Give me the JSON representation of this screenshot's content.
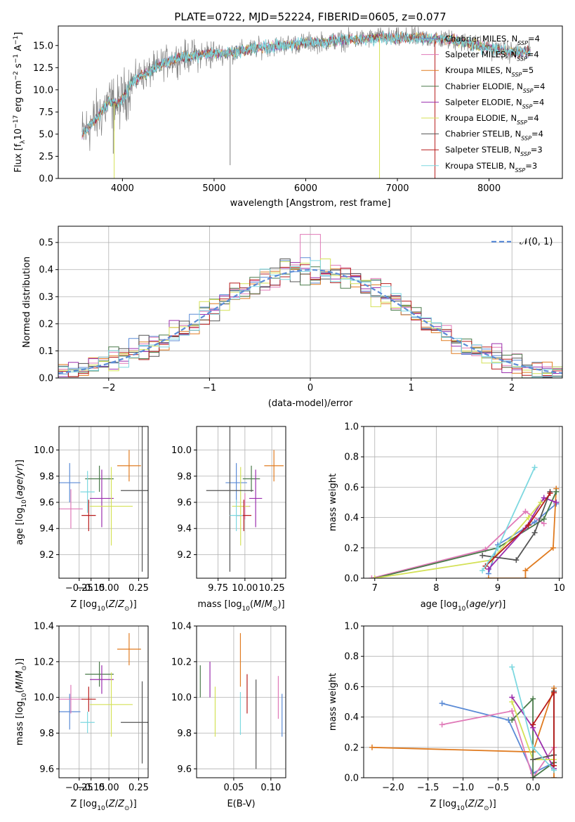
{
  "title": "PLATE=0722, MJD=52224, FIBERID=0605, z=0.077",
  "colors": {
    "chabrier_miles": "#5b8bd6",
    "salpeter_miles": "#e07ab8",
    "kroupa_miles": "#e07b20",
    "chabrier_elodie": "#4a7a4a",
    "salpeter_elodie": "#9b2fae",
    "kroupa_elodie": "#d4e157",
    "chabrier_stelib": "#555555",
    "salpeter_stelib": "#b71c1c",
    "kroupa_stelib": "#7dd8e0",
    "data": "#808080",
    "grid": "#b0b0b0"
  },
  "chart_data": [
    {
      "id": "spectrum",
      "type": "line",
      "title": "PLATE=0722, MJD=52224, FIBERID=0605, z=0.077",
      "xlabel": "wavelength [Angstrom, rest frame]",
      "ylabel": "Flux [f_λ 10^-17 erg cm^-2 s^-1 A^-1]",
      "xlim": [
        3300,
        8800
      ],
      "ylim": [
        0,
        17.2
      ],
      "xticks": [
        4000,
        5000,
        6000,
        7000,
        8000
      ],
      "yticks": [
        0.0,
        2.5,
        5.0,
        7.5,
        10.0,
        12.5,
        15.0
      ],
      "grid": false,
      "legend_position": "right",
      "legend": [
        {
          "label": "Chabrier MILES, N",
          "sub": "SSP",
          "suffix": "=4",
          "color_key": "chabrier_miles"
        },
        {
          "label": "Salpeter MILES, N",
          "sub": "SSP",
          "suffix": "=4",
          "color_key": "salpeter_miles"
        },
        {
          "label": "Kroupa MILES, N",
          "sub": "SSP",
          "suffix": "=5",
          "color_key": "kroupa_miles"
        },
        {
          "label": "Chabrier ELODIE, N",
          "sub": "SSP",
          "suffix": "=4",
          "color_key": "chabrier_elodie"
        },
        {
          "label": "Salpeter ELODIE, N",
          "sub": "SSP",
          "suffix": "=4",
          "color_key": "salpeter_elodie"
        },
        {
          "label": "Kroupa ELODIE, N",
          "sub": "SSP",
          "suffix": "=4",
          "color_key": "kroupa_elodie"
        },
        {
          "label": "Chabrier STELIB, N",
          "sub": "SSP",
          "suffix": "=4",
          "color_key": "chabrier_stelib"
        },
        {
          "label": "Salpeter STELIB, N",
          "sub": "SSP",
          "suffix": "=3",
          "color_key": "salpeter_stelib"
        },
        {
          "label": "Kroupa STELIB, N",
          "sub": "SSP",
          "suffix": "=3",
          "color_key": "kroupa_stelib"
        }
      ],
      "continuum": [
        [
          3550,
          4.8
        ],
        [
          3650,
          6.0
        ],
        [
          3750,
          7.2
        ],
        [
          3850,
          8.6
        ],
        [
          3950,
          8.4
        ],
        [
          4000,
          9.0
        ],
        [
          4100,
          10.8
        ],
        [
          4200,
          11.6
        ],
        [
          4300,
          12.0
        ],
        [
          4400,
          12.8
        ],
        [
          4600,
          13.6
        ],
        [
          4800,
          13.9
        ],
        [
          5000,
          14.1
        ],
        [
          5200,
          14.2
        ],
        [
          5400,
          14.6
        ],
        [
          5600,
          14.9
        ],
        [
          5800,
          15.1
        ],
        [
          6000,
          15.3
        ],
        [
          6200,
          15.4
        ],
        [
          6400,
          15.6
        ],
        [
          6600,
          15.7
        ],
        [
          6800,
          15.9
        ],
        [
          7000,
          15.8
        ],
        [
          7200,
          15.9
        ],
        [
          7400,
          15.8
        ],
        [
          7600,
          15.6
        ],
        [
          7800,
          15.2
        ],
        [
          8000,
          14.7
        ],
        [
          8200,
          14.3
        ],
        [
          8400,
          14.2
        ]
      ],
      "dips": [
        {
          "x": 3910,
          "y": 0.0,
          "color_key": "kroupa_elodie"
        },
        {
          "x": 3900,
          "y": 2.8,
          "color_key": "data"
        },
        {
          "x": 5175,
          "y": 1.5,
          "color_key": "data"
        },
        {
          "x": 6805,
          "y": 0.0,
          "color_key": "kroupa_elodie"
        },
        {
          "x": 7410,
          "y": 0.0,
          "color_key": "salpeter_stelib"
        }
      ]
    },
    {
      "id": "residuals",
      "type": "histogram",
      "xlabel": "(data-model)/error",
      "ylabel": "Normed distribution",
      "xlim": [
        -2.5,
        2.5
      ],
      "ylim": [
        0,
        0.56
      ],
      "xticks": [
        -2,
        -1,
        0,
        1,
        2
      ],
      "yticks": [
        0.0,
        0.1,
        0.2,
        0.3,
        0.4,
        0.5
      ],
      "grid": true,
      "bin_width": 0.1,
      "reference_curve": {
        "label": "𝒩(0, 1)",
        "mean": 0,
        "sigma": 1,
        "color_key": "chabrier_miles"
      }
    },
    {
      "id": "age-vs-Z",
      "type": "errorbar",
      "xlabel": "Z [log10(Z/Z⊙)]",
      "ylabel": "age [log10(age/yr)]",
      "xlim": [
        -0.42,
        0.33
      ],
      "ylim": [
        9.02,
        10.18
      ],
      "xticks": [
        -0.25,
        -0.15,
        0.0,
        0.25
      ],
      "xtick_labels": [
        "−0.25",
        "−0.15",
        "0.00",
        "0.25"
      ],
      "yticks": [
        9.2,
        9.4,
        9.6,
        9.8,
        10.0
      ],
      "grid": true,
      "points": [
        {
          "x": -0.33,
          "xerr": 0.09,
          "y": 9.75,
          "yerr": 0.15,
          "color_key": "chabrier_miles"
        },
        {
          "x": -0.32,
          "xerr": 0.1,
          "y": 9.55,
          "yerr": 0.15,
          "color_key": "salpeter_miles"
        },
        {
          "x": 0.17,
          "xerr": 0.1,
          "y": 9.88,
          "yerr": 0.12,
          "color_key": "kroupa_miles"
        },
        {
          "x": -0.08,
          "xerr": 0.12,
          "y": 9.78,
          "yerr": 0.1,
          "color_key": "chabrier_elodie"
        },
        {
          "x": -0.06,
          "xerr": 0.1,
          "y": 9.63,
          "yerr": 0.22,
          "color_key": "salpeter_elodie"
        },
        {
          "x": 0.02,
          "xerr": 0.18,
          "y": 9.57,
          "yerr": 0.3,
          "color_key": "kroupa_elodie"
        },
        {
          "x": 0.28,
          "xerr": 0.18,
          "y": 9.69,
          "yerr": 0.62,
          "color_key": "chabrier_stelib"
        },
        {
          "x": -0.17,
          "xerr": 0.06,
          "y": 9.5,
          "yerr": 0.12,
          "color_key": "salpeter_stelib"
        },
        {
          "x": -0.18,
          "xerr": 0.06,
          "y": 9.68,
          "yerr": 0.16,
          "color_key": "kroupa_stelib"
        }
      ]
    },
    {
      "id": "age-vs-mass",
      "type": "errorbar",
      "xlabel": "mass [log10(M/M⊙)]",
      "xlim": [
        9.55,
        10.38
      ],
      "ylim": [
        9.02,
        10.18
      ],
      "xticks": [
        9.75,
        10.0,
        10.25
      ],
      "xtick_labels": [
        "9.75",
        "10.00",
        "10.25"
      ],
      "yticks": [
        9.2,
        9.4,
        9.6,
        9.8,
        10.0
      ],
      "grid": true,
      "points": [
        {
          "x": 9.92,
          "xerr": 0.1,
          "y": 9.75,
          "yerr": 0.15,
          "color_key": "chabrier_miles"
        },
        {
          "x": 10.0,
          "xerr": 0.05,
          "y": 9.57,
          "yerr": 0.1,
          "color_key": "salpeter_miles"
        },
        {
          "x": 10.27,
          "xerr": 0.09,
          "y": 9.88,
          "yerr": 0.12,
          "color_key": "kroupa_miles"
        },
        {
          "x": 10.06,
          "xerr": 0.08,
          "y": 9.78,
          "yerr": 0.1,
          "color_key": "chabrier_elodie"
        },
        {
          "x": 10.1,
          "xerr": 0.06,
          "y": 9.63,
          "yerr": 0.22,
          "color_key": "salpeter_elodie"
        },
        {
          "x": 9.96,
          "xerr": 0.08,
          "y": 9.57,
          "yerr": 0.3,
          "color_key": "kroupa_elodie"
        },
        {
          "x": 9.86,
          "xerr": 0.22,
          "y": 9.69,
          "yerr": 0.62,
          "color_key": "chabrier_stelib"
        },
        {
          "x": 9.99,
          "xerr": 0.07,
          "y": 9.5,
          "yerr": 0.12,
          "color_key": "salpeter_stelib"
        },
        {
          "x": 9.92,
          "xerr": 0.06,
          "y": 9.5,
          "yerr": 0.12,
          "color_key": "kroupa_stelib"
        }
      ]
    },
    {
      "id": "weight-vs-age",
      "type": "line",
      "xlabel": "age [log10(age/yr)]",
      "ylabel": "mass weight",
      "xlim": [
        6.82,
        10.05
      ],
      "ylim": [
        0,
        1.0
      ],
      "xticks": [
        7,
        8,
        9,
        10
      ],
      "yticks": [
        0.0,
        0.2,
        0.4,
        0.6,
        0.8,
        1.0
      ],
      "grid": true,
      "series": [
        {
          "color_key": "chabrier_miles",
          "points": [
            [
              8.85,
              0.03
            ],
            [
              9.0,
              0.22
            ],
            [
              9.6,
              0.37
            ],
            [
              9.95,
              0.49
            ]
          ]
        },
        {
          "color_key": "salpeter_miles",
          "points": [
            [
              6.95,
              0.0
            ],
            [
              8.8,
              0.19
            ],
            [
              9.45,
              0.44
            ],
            [
              9.75,
              0.36
            ]
          ]
        },
        {
          "color_key": "kroupa_miles",
          "points": [
            [
              8.85,
              0.0
            ],
            [
              9.45,
              0.0
            ],
            [
              9.45,
              0.05
            ],
            [
              9.9,
              0.2
            ],
            [
              9.95,
              0.59
            ]
          ]
        },
        {
          "color_key": "chabrier_elodie",
          "points": [
            [
              7.0,
              0.0
            ],
            [
              9.0,
              0.2
            ],
            [
              9.75,
              0.39
            ],
            [
              9.95,
              0.57
            ]
          ]
        },
        {
          "color_key": "salpeter_elodie",
          "points": [
            [
              8.85,
              0.06
            ],
            [
              9.45,
              0.33
            ],
            [
              9.75,
              0.53
            ],
            [
              9.95,
              0.5
            ]
          ]
        },
        {
          "color_key": "kroupa_elodie",
          "points": [
            [
              7.0,
              0.0
            ],
            [
              8.9,
              0.12
            ],
            [
              9.5,
              0.4
            ],
            [
              9.7,
              0.5
            ]
          ]
        },
        {
          "color_key": "chabrier_stelib",
          "points": [
            [
              8.75,
              0.15
            ],
            [
              9.3,
              0.12
            ],
            [
              9.6,
              0.3
            ],
            [
              9.85,
              0.57
            ]
          ]
        },
        {
          "color_key": "salpeter_stelib",
          "points": [
            [
              8.8,
              0.08
            ],
            [
              9.5,
              0.35
            ],
            [
              9.85,
              0.56
            ]
          ]
        },
        {
          "color_key": "kroupa_stelib",
          "points": [
            [
              8.75,
              0.05
            ],
            [
              9.0,
              0.2
            ],
            [
              9.6,
              0.73
            ]
          ]
        }
      ]
    },
    {
      "id": "mass-vs-Z",
      "type": "errorbar",
      "xlabel": "Z [log10(Z/Z⊙)]",
      "ylabel": "mass [log10(M/M⊙)]",
      "xlim": [
        -0.42,
        0.33
      ],
      "ylim": [
        9.55,
        10.4
      ],
      "xticks": [
        -0.25,
        -0.15,
        0.0,
        0.25
      ],
      "xtick_labels": [
        "−0.25",
        "−0.15",
        "0.00",
        "0.25"
      ],
      "yticks": [
        9.6,
        9.8,
        10.0,
        10.2,
        10.4
      ],
      "grid": true,
      "points": [
        {
          "x": -0.33,
          "xerr": 0.09,
          "y": 9.92,
          "yerr": 0.1,
          "color_key": "chabrier_miles"
        },
        {
          "x": -0.32,
          "xerr": 0.1,
          "y": 9.99,
          "yerr": 0.08,
          "color_key": "salpeter_miles"
        },
        {
          "x": 0.17,
          "xerr": 0.1,
          "y": 10.27,
          "yerr": 0.09,
          "color_key": "kroupa_miles"
        },
        {
          "x": -0.08,
          "xerr": 0.12,
          "y": 10.13,
          "yerr": 0.07,
          "color_key": "chabrier_elodie"
        },
        {
          "x": -0.06,
          "xerr": 0.1,
          "y": 10.1,
          "yerr": 0.08,
          "color_key": "salpeter_elodie"
        },
        {
          "x": 0.02,
          "xerr": 0.18,
          "y": 9.96,
          "yerr": 0.18,
          "color_key": "kroupa_elodie"
        },
        {
          "x": 0.28,
          "xerr": 0.18,
          "y": 9.86,
          "yerr": 0.23,
          "color_key": "chabrier_stelib"
        },
        {
          "x": -0.17,
          "xerr": 0.06,
          "y": 9.99,
          "yerr": 0.07,
          "color_key": "salpeter_stelib"
        },
        {
          "x": -0.18,
          "xerr": 0.06,
          "y": 9.86,
          "yerr": 0.06,
          "color_key": "kroupa_stelib"
        }
      ]
    },
    {
      "id": "mass-vs-ebv",
      "type": "errorbar",
      "xlabel": "E(B-V)",
      "xlim": [
        0.0,
        0.12
      ],
      "ylim": [
        9.55,
        10.4
      ],
      "xticks": [
        0.05,
        0.1
      ],
      "xtick_labels": [
        "0.05",
        "0.10"
      ],
      "yticks": [
        9.6,
        9.8,
        10.0,
        10.2,
        10.4
      ],
      "grid": true,
      "points": [
        {
          "x": 0.115,
          "y": 9.9,
          "yerr": 0.12,
          "color_key": "chabrier_miles"
        },
        {
          "x": 0.11,
          "y": 10.0,
          "yerr": 0.12,
          "color_key": "salpeter_miles"
        },
        {
          "x": 0.059,
          "y": 10.21,
          "yerr": 0.15,
          "color_key": "kroupa_miles"
        },
        {
          "x": 0.005,
          "y": 10.09,
          "yerr": 0.09,
          "color_key": "chabrier_elodie"
        },
        {
          "x": 0.018,
          "y": 10.1,
          "yerr": 0.1,
          "color_key": "salpeter_elodie"
        },
        {
          "x": 0.025,
          "y": 9.92,
          "yerr": 0.14,
          "color_key": "kroupa_elodie"
        },
        {
          "x": 0.08,
          "y": 9.85,
          "yerr": 0.25,
          "color_key": "chabrier_stelib"
        },
        {
          "x": 0.068,
          "y": 10.02,
          "yerr": 0.11,
          "color_key": "salpeter_stelib"
        },
        {
          "x": 0.059,
          "y": 9.91,
          "yerr": 0.12,
          "color_key": "kroupa_stelib"
        }
      ]
    },
    {
      "id": "weight-vs-Z",
      "type": "line",
      "xlabel": "Z [log10(Z/Z⊙)]",
      "ylabel": "mass weight",
      "xlim": [
        -2.42,
        0.42
      ],
      "ylim": [
        0,
        1.0
      ],
      "xticks": [
        -2.0,
        -1.5,
        -1.0,
        -0.5,
        0.0
      ],
      "xtick_labels": [
        "−2.0",
        "−1.5",
        "−1.0",
        "−0.5",
        "0.0"
      ],
      "yticks": [
        0.0,
        0.2,
        0.4,
        0.6,
        0.8,
        1.0
      ],
      "grid": true,
      "series": [
        {
          "color_key": "chabrier_miles",
          "points": [
            [
              -1.3,
              0.49
            ],
            [
              -0.35,
              0.38
            ],
            [
              0.0,
              0.03
            ],
            [
              0.3,
              0.1
            ]
          ]
        },
        {
          "color_key": "salpeter_miles",
          "points": [
            [
              -1.3,
              0.35
            ],
            [
              -0.3,
              0.44
            ],
            [
              0.0,
              0.0
            ],
            [
              0.3,
              0.2
            ]
          ]
        },
        {
          "color_key": "kroupa_miles",
          "points": [
            [
              -2.3,
              0.2
            ],
            [
              0.0,
              0.17
            ],
            [
              0.3,
              0.59
            ],
            [
              0.3,
              0.0
            ]
          ]
        },
        {
          "color_key": "chabrier_elodie",
          "points": [
            [
              -0.3,
              0.38
            ],
            [
              0.0,
              0.52
            ],
            [
              0.0,
              0.0
            ],
            [
              0.3,
              0.1
            ]
          ]
        },
        {
          "color_key": "salpeter_elodie",
          "points": [
            [
              -0.3,
              0.53
            ],
            [
              0.0,
              0.33
            ],
            [
              0.3,
              0.06
            ]
          ]
        },
        {
          "color_key": "kroupa_elodie",
          "points": [
            [
              -0.3,
              0.5
            ],
            [
              0.0,
              0.12
            ],
            [
              0.3,
              0.12
            ]
          ]
        },
        {
          "color_key": "chabrier_stelib",
          "points": [
            [
              0.0,
              0.12
            ],
            [
              0.3,
              0.15
            ],
            [
              0.3,
              0.57
            ]
          ]
        },
        {
          "color_key": "salpeter_stelib",
          "points": [
            [
              0.0,
              0.35
            ],
            [
              0.3,
              0.56
            ],
            [
              0.3,
              0.08
            ]
          ]
        },
        {
          "color_key": "kroupa_stelib",
          "points": [
            [
              -0.3,
              0.73
            ],
            [
              0.0,
              0.2
            ],
            [
              0.3,
              0.05
            ]
          ]
        }
      ]
    }
  ]
}
